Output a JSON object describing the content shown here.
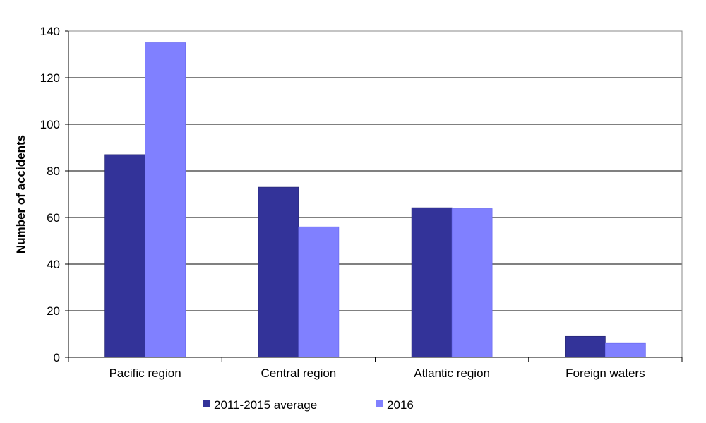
{
  "chart_data": {
    "type": "bar",
    "title": "",
    "xlabel": "",
    "ylabel": "Number of accidents",
    "ylim": [
      0,
      140
    ],
    "yticks": [
      0,
      20,
      40,
      60,
      80,
      100,
      120,
      140
    ],
    "grid": true,
    "legend_position": "bottom",
    "categories": [
      "Pacific region",
      "Central region",
      "Atlantic region",
      "Foreign waters"
    ],
    "series": [
      {
        "name": "2011-2015 average",
        "color": "#333399",
        "values": [
          87,
          73,
          64.2,
          9
        ]
      },
      {
        "name": "2016",
        "color": "#8080FF",
        "values": [
          135,
          56,
          63.8,
          6
        ]
      }
    ]
  }
}
